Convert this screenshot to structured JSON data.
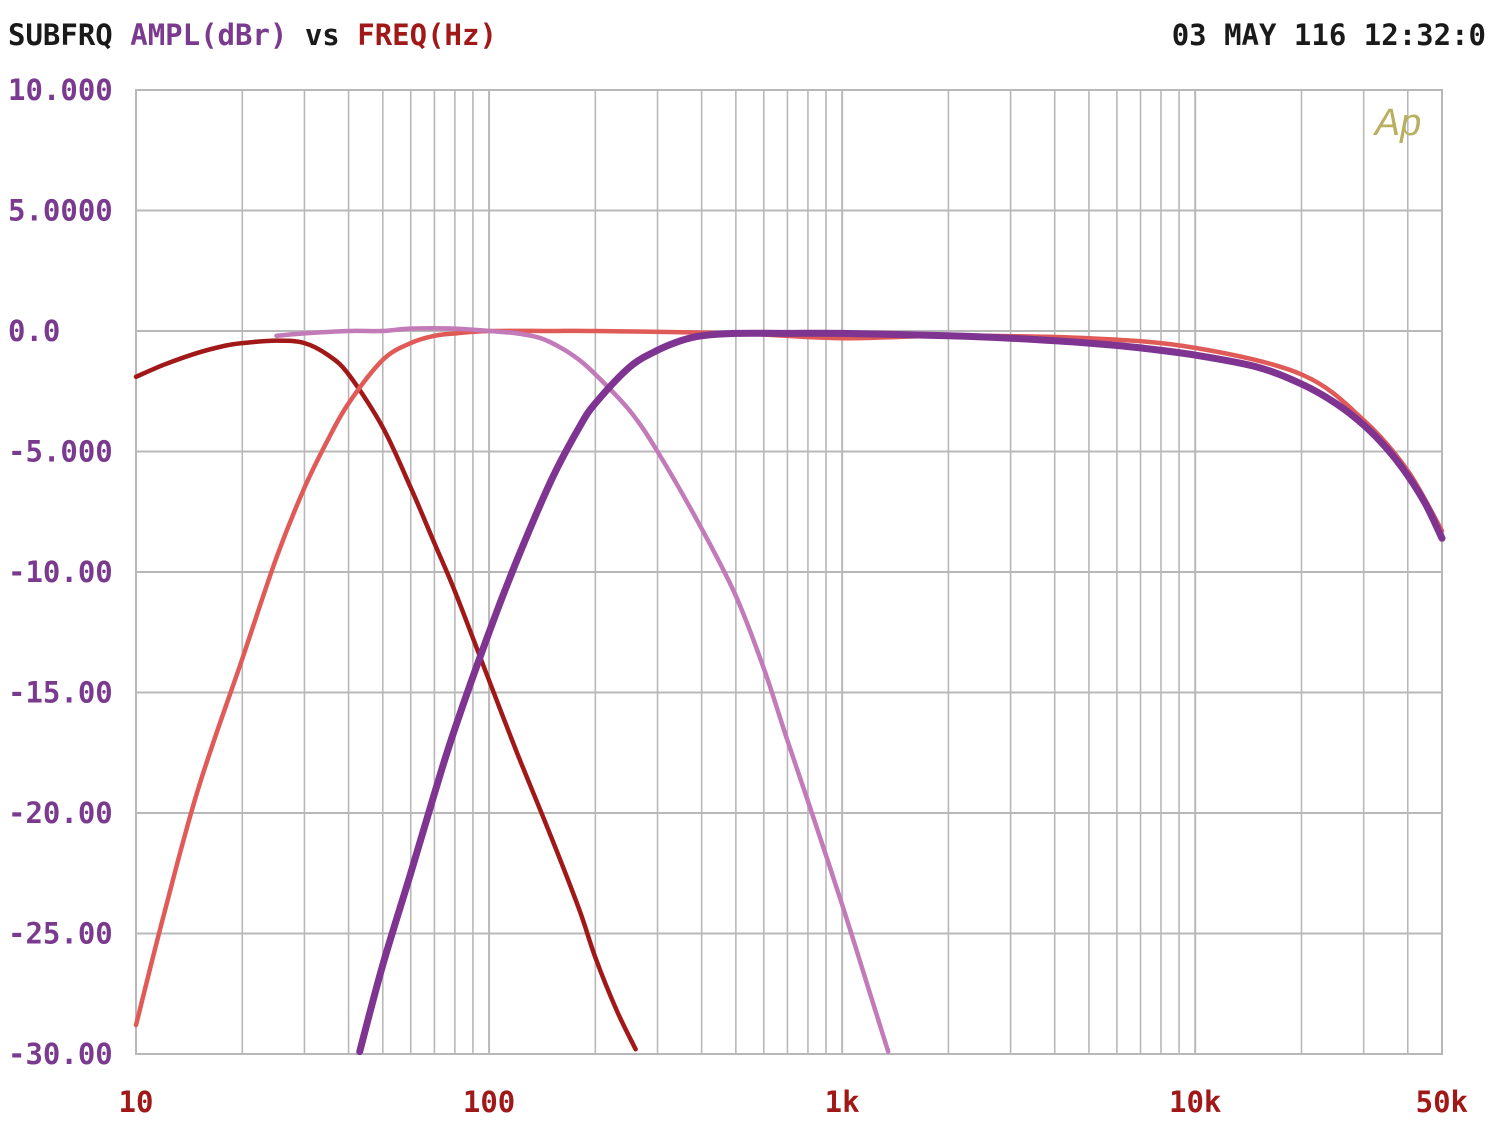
{
  "header": {
    "prefix": "SUBFRQ",
    "y_quantity": "AMPL(dBr)",
    "vs": "vs",
    "x_quantity": "FREQ(Hz)",
    "timestamp": "03 MAY 116 12:32:0"
  },
  "logo_text": "Ap",
  "colors": {
    "grid": "#b8b8b8",
    "y_tick_text": "#7a3a8e",
    "x_tick_text": "#a01818",
    "header_text": "#1a1a1a",
    "logo": "#b8b060",
    "series_a": "#a01818",
    "series_b": "#e05a58",
    "series_c": "#c27ab8",
    "series_d": "#7e3490"
  },
  "chart_data": {
    "type": "line",
    "title": "SUBFRQ AMPL(dBr) vs FREQ(Hz)",
    "xlabel": "FREQ(Hz)",
    "ylabel": "AMPL(dBr)",
    "x_scale": "log",
    "xlim": [
      10,
      50000
    ],
    "ylim": [
      -30,
      10
    ],
    "grid": true,
    "y_ticks": [
      10,
      5,
      0,
      -5,
      -10,
      -15,
      -20,
      -25,
      -30
    ],
    "y_tick_labels": [
      "10.000",
      "5.0000",
      "0.0",
      "-5.000",
      "-10.00",
      "-15.00",
      "-20.00",
      "-25.00",
      "-30.00"
    ],
    "x_ticks": [
      10,
      100,
      1000,
      10000,
      50000
    ],
    "x_tick_labels": [
      "10",
      "100",
      "1k",
      "10k",
      "50k"
    ],
    "series": [
      {
        "color": "#a01818",
        "width": 4.5,
        "x": [
          10,
          12,
          15,
          18,
          20,
          25,
          30,
          35,
          40,
          50,
          60,
          70,
          80,
          100,
          120,
          150,
          180,
          200,
          230,
          260
        ],
        "y": [
          -1.9,
          -1.4,
          -0.9,
          -0.6,
          -0.5,
          -0.4,
          -0.5,
          -1.0,
          -1.8,
          -4.0,
          -6.5,
          -8.8,
          -10.8,
          -14.5,
          -17.5,
          -21.0,
          -24.0,
          -26.0,
          -28.2,
          -29.8
        ]
      },
      {
        "color": "#e05a58",
        "width": 4.5,
        "x": [
          10,
          12,
          15,
          20,
          25,
          30,
          35,
          40,
          50,
          60,
          70,
          80,
          100,
          150,
          200,
          500,
          1000,
          2000,
          5000,
          10000,
          20000,
          30000,
          40000,
          50000
        ],
        "y": [
          -28.8,
          -24.2,
          -19.0,
          -13.6,
          -9.4,
          -6.5,
          -4.5,
          -3.0,
          -1.2,
          -0.5,
          -0.2,
          -0.1,
          0.0,
          0.0,
          0.0,
          -0.1,
          -0.3,
          -0.2,
          -0.3,
          -0.7,
          -1.8,
          -3.7,
          -5.8,
          -8.3
        ]
      },
      {
        "color": "#c27ab8",
        "width": 4.5,
        "x": [
          25,
          30,
          40,
          50,
          60,
          80,
          100,
          120,
          140,
          160,
          180,
          200,
          250,
          300,
          400,
          500,
          600,
          700,
          800,
          1000,
          1200,
          1350
        ],
        "y": [
          -0.2,
          -0.1,
          0.0,
          0.0,
          0.1,
          0.1,
          0.0,
          -0.1,
          -0.3,
          -0.7,
          -1.2,
          -1.8,
          -3.3,
          -5.0,
          -8.2,
          -11.0,
          -14.0,
          -17.0,
          -19.5,
          -23.8,
          -27.5,
          -29.9
        ]
      },
      {
        "color": "#7e3490",
        "width": 7,
        "x": [
          43,
          50,
          60,
          70,
          80,
          100,
          120,
          150,
          180,
          200,
          250,
          300,
          350,
          400,
          500,
          700,
          1000,
          2000,
          3000,
          5000,
          7000,
          10000,
          15000,
          20000,
          25000,
          30000,
          35000,
          40000,
          45000,
          50000
        ],
        "y": [
          -29.9,
          -26.3,
          -22.5,
          -19.2,
          -16.5,
          -12.5,
          -9.5,
          -6.2,
          -4.0,
          -3.0,
          -1.5,
          -0.8,
          -0.4,
          -0.2,
          -0.1,
          -0.1,
          -0.1,
          -0.2,
          -0.3,
          -0.5,
          -0.7,
          -1.0,
          -1.5,
          -2.2,
          -3.0,
          -3.9,
          -4.9,
          -6.0,
          -7.2,
          -8.6
        ]
      }
    ]
  }
}
